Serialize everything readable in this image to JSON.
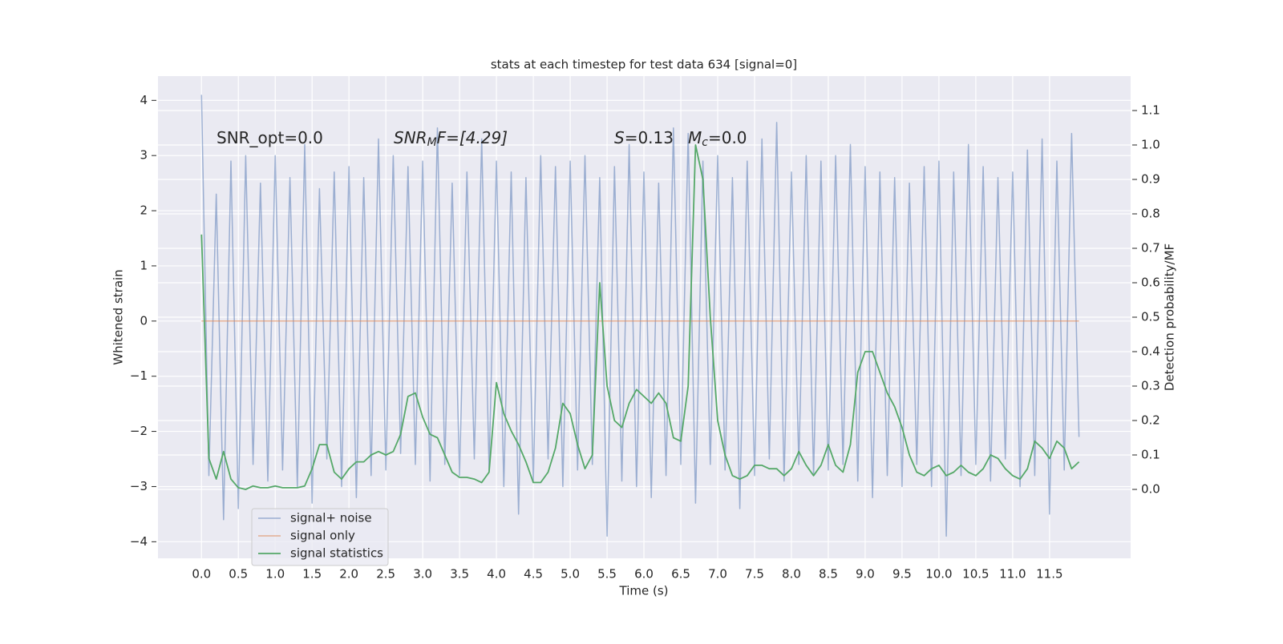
{
  "chart_data": {
    "type": "line",
    "title": "stats at each timestep for test data 634 [signal=0]",
    "xlabel": "Time (s)",
    "ylabel": "Whitened strain",
    "y2label": "Detection probability/MF",
    "annotations": [
      {
        "parts": [
          {
            "text": "SNR_opt=0.0",
            "style": "normal"
          }
        ]
      },
      {
        "parts": [
          {
            "text": "SNR",
            "style": "italic"
          },
          {
            "text": "M",
            "style": "italic-sub"
          },
          {
            "text": "F=[4.29]",
            "style": "italic"
          }
        ]
      },
      {
        "parts": [
          {
            "text": "S",
            "style": "italic"
          },
          {
            "text": "=0.13",
            "style": "normal"
          }
        ]
      },
      {
        "parts": [
          {
            "text": "M",
            "style": "italic"
          },
          {
            "text": "c",
            "style": "italic-sub"
          },
          {
            "text": "=0.0",
            "style": "normal"
          }
        ]
      }
    ],
    "x": [
      0,
      0.1,
      0.2,
      0.3,
      0.4,
      0.5,
      0.6,
      0.7,
      0.8,
      0.9,
      1,
      1.1,
      1.2,
      1.3,
      1.4,
      1.5,
      1.6,
      1.7,
      1.8,
      1.9,
      2,
      2.1,
      2.2,
      2.3,
      2.4,
      2.5,
      2.6,
      2.7,
      2.8,
      2.9,
      3,
      3.1,
      3.2,
      3.3,
      3.4,
      3.5,
      3.6,
      3.7,
      3.8,
      3.9,
      4,
      4.1,
      4.2,
      4.3,
      4.4,
      4.5,
      4.6,
      4.7,
      4.8,
      4.9,
      5,
      5.1,
      5.2,
      5.3,
      5.4,
      5.5,
      5.6,
      5.7,
      5.8,
      5.9,
      6,
      6.1,
      6.2,
      6.3,
      6.4,
      6.5,
      6.6,
      6.7,
      6.8,
      6.9,
      7,
      7.1,
      7.2,
      7.3,
      7.4,
      7.5,
      7.6,
      7.7,
      7.8,
      7.9,
      8,
      8.1,
      8.2,
      8.3,
      8.4,
      8.5,
      8.6,
      8.7,
      8.8,
      8.9,
      9,
      9.1,
      9.2,
      9.3,
      9.4,
      9.5,
      9.6,
      9.7,
      9.8,
      9.9,
      10,
      10.1,
      10.2,
      10.3,
      10.4,
      10.5,
      10.6,
      10.7,
      10.8,
      10.9,
      11,
      11.1,
      11.2,
      11.3,
      11.4,
      11.5,
      11.6,
      11.7,
      11.8,
      11.9
    ],
    "series": [
      {
        "name": "signal+ noise",
        "color": "#4c72b0",
        "axis": "y",
        "values": [
          4.1,
          -2.8,
          2.3,
          -3.6,
          2.9,
          -3.4,
          3.0,
          -2.6,
          2.5,
          -2.9,
          3.0,
          -2.7,
          2.6,
          -3.0,
          3.2,
          -3.3,
          2.4,
          -2.5,
          2.7,
          -3.0,
          2.8,
          -3.2,
          2.6,
          -2.8,
          3.3,
          -2.7,
          3.0,
          -2.4,
          2.8,
          -2.6,
          2.9,
          -2.9,
          3.5,
          -2.6,
          2.5,
          -2.8,
          2.7,
          -2.5,
          3.3,
          -2.7,
          2.9,
          -3.0,
          2.7,
          -3.5,
          2.6,
          -2.9,
          3.0,
          -2.5,
          2.8,
          -3.0,
          2.9,
          -2.7,
          3.0,
          -2.6,
          2.6,
          -3.9,
          2.8,
          -2.9,
          3.2,
          -3.0,
          2.7,
          -3.2,
          2.5,
          -2.8,
          3.5,
          -2.6,
          3.4,
          -3.3,
          2.9,
          -2.6,
          3.0,
          -2.7,
          2.6,
          -3.4,
          2.9,
          -2.8,
          3.3,
          -2.5,
          3.6,
          -2.9,
          2.7,
          -2.6,
          3.0,
          -2.8,
          2.9,
          -2.7,
          3.0,
          -2.6,
          3.2,
          -2.9,
          2.8,
          -3.2,
          2.7,
          -2.8,
          2.6,
          -3.0,
          2.5,
          -2.6,
          2.8,
          -3.0,
          2.9,
          -3.9,
          2.7,
          -2.8,
          3.2,
          -2.6,
          2.8,
          -2.9,
          2.6,
          -2.5,
          2.7,
          -3.0,
          3.1,
          -2.8,
          3.3,
          -3.5,
          2.9,
          -2.7,
          3.4,
          -2.1
        ]
      },
      {
        "name": "signal only",
        "color": "#dd8452",
        "axis": "y",
        "values": [
          0,
          0,
          0,
          0,
          0,
          0,
          0,
          0,
          0,
          0,
          0,
          0,
          0,
          0,
          0,
          0,
          0,
          0,
          0,
          0,
          0,
          0,
          0,
          0,
          0,
          0,
          0,
          0,
          0,
          0,
          0,
          0,
          0,
          0,
          0,
          0,
          0,
          0,
          0,
          0,
          0,
          0,
          0,
          0,
          0,
          0,
          0,
          0,
          0,
          0,
          0,
          0,
          0,
          0,
          0,
          0,
          0,
          0,
          0,
          0,
          0,
          0,
          0,
          0,
          0,
          0,
          0,
          0,
          0,
          0,
          0,
          0,
          0,
          0,
          0,
          0,
          0,
          0,
          0,
          0,
          0,
          0,
          0,
          0,
          0,
          0,
          0,
          0,
          0,
          0,
          0,
          0,
          0,
          0,
          0,
          0,
          0,
          0,
          0,
          0,
          0,
          0,
          0,
          0,
          0,
          0,
          0,
          0,
          0,
          0,
          0,
          0,
          0,
          0,
          0,
          0,
          0,
          0,
          0,
          0
        ]
      },
      {
        "name": "signal statistics",
        "color": "#55a868",
        "axis": "y2",
        "values": [
          0.74,
          0.09,
          0.03,
          0.11,
          0.03,
          0.005,
          0.0,
          0.01,
          0.005,
          0.005,
          0.01,
          0.005,
          0.005,
          0.005,
          0.01,
          0.06,
          0.13,
          0.13,
          0.05,
          0.03,
          0.06,
          0.08,
          0.08,
          0.1,
          0.11,
          0.1,
          0.11,
          0.16,
          0.27,
          0.28,
          0.21,
          0.16,
          0.15,
          0.1,
          0.05,
          0.035,
          0.035,
          0.03,
          0.02,
          0.05,
          0.31,
          0.22,
          0.17,
          0.13,
          0.08,
          0.02,
          0.02,
          0.05,
          0.12,
          0.25,
          0.22,
          0.13,
          0.06,
          0.1,
          0.6,
          0.3,
          0.2,
          0.18,
          0.25,
          0.29,
          0.27,
          0.25,
          0.28,
          0.25,
          0.15,
          0.14,
          0.3,
          1.0,
          0.9,
          0.5,
          0.2,
          0.1,
          0.04,
          0.03,
          0.04,
          0.07,
          0.07,
          0.06,
          0.06,
          0.04,
          0.06,
          0.11,
          0.07,
          0.04,
          0.07,
          0.13,
          0.07,
          0.05,
          0.13,
          0.34,
          0.4,
          0.4,
          0.34,
          0.28,
          0.24,
          0.18,
          0.1,
          0.05,
          0.04,
          0.06,
          0.07,
          0.04,
          0.05,
          0.07,
          0.05,
          0.04,
          0.06,
          0.1,
          0.09,
          0.06,
          0.04,
          0.03,
          0.06,
          0.14,
          0.12,
          0.09,
          0.14,
          0.12,
          0.06,
          0.08
        ]
      }
    ],
    "xlim": [
      -0.59,
      12.6
    ],
    "xticks": [
      {
        "value": 0,
        "label": "0.0"
      },
      0.5,
      {
        "value": 1,
        "label": "1.0"
      },
      1.5,
      {
        "value": 2,
        "label": "2.0"
      },
      2.5,
      {
        "value": 3,
        "label": "3.0"
      },
      3.5,
      {
        "value": 4,
        "label": "4.0"
      },
      4.5,
      {
        "value": 5,
        "label": "5.0"
      },
      5.5,
      {
        "value": 6,
        "label": "6.0"
      },
      6.5,
      {
        "value": 7,
        "label": "7.0"
      },
      7.5,
      {
        "value": 8,
        "label": "8.0"
      },
      8.5,
      {
        "value": 9,
        "label": "9.0"
      },
      9.5,
      {
        "value": 10,
        "label": "10.0"
      },
      10.5,
      {
        "value": 11,
        "label": "11.0"
      },
      11.5
    ],
    "ylim": [
      -4.3,
      4.44
    ],
    "yticks": [
      {
        "value": -4,
        "label": "−4"
      },
      {
        "value": -3,
        "label": "−3"
      },
      {
        "value": -2,
        "label": "−2"
      },
      {
        "value": -1,
        "label": "−1"
      },
      0,
      1,
      2,
      3,
      4
    ],
    "y2lim": [
      -0.2,
      1.2
    ],
    "y2ticks": [
      {
        "value": 0,
        "label": "0.0"
      },
      0.1,
      0.2,
      0.3,
      0.4,
      0.5,
      0.6,
      0.7,
      0.8,
      0.9,
      {
        "value": 1,
        "label": "1.0"
      },
      1.1
    ],
    "grid": true,
    "legend": "lower left"
  }
}
